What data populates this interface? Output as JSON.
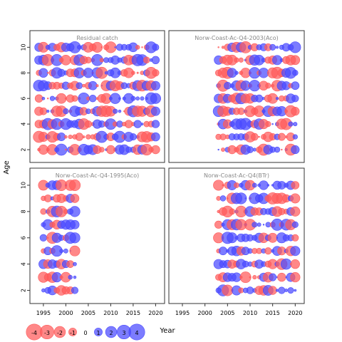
{
  "chart_data": {
    "type": "scatter",
    "subtype": "bubble-residuals",
    "xlabel": "Year",
    "ylabel": "Age",
    "xlim": [
      1992,
      2022
    ],
    "ylim": [
      1,
      11.3
    ],
    "x_ticks": [
      1995,
      2000,
      2005,
      2010,
      2015,
      2020
    ],
    "y_ticks": [
      2,
      4,
      6,
      8,
      10
    ],
    "colors": {
      "positive": "#4a4aff",
      "negative": "#ff5a5a",
      "frame": "#333333",
      "title": "#888888"
    },
    "legend": {
      "placement": "bottom-left",
      "values": [
        -4,
        -3,
        -2,
        -1,
        0,
        1,
        2,
        3,
        4
      ],
      "labels": [
        "-4",
        "-3",
        "-2",
        "-1",
        "0",
        "1",
        "2",
        "3",
        "4"
      ]
    },
    "panels": [
      {
        "name": "Residual catch",
        "years": [
          1994,
          2020
        ],
        "ages": [
          2,
          10
        ]
      },
      {
        "name": "Norw-Coast-Ac-Q4-2003(Aco)",
        "years": [
          2003,
          2020
        ],
        "ages": [
          2,
          10
        ]
      },
      {
        "name": "Norw-Coast-Ac-Q4-1995(Aco)",
        "years": [
          1995,
          2002
        ],
        "ages": [
          2,
          10
        ]
      },
      {
        "name": "Norw-Coast-Ac-Q4(BTr)",
        "years": [
          2003,
          2020
        ],
        "ages": [
          2,
          10
        ]
      }
    ]
  }
}
